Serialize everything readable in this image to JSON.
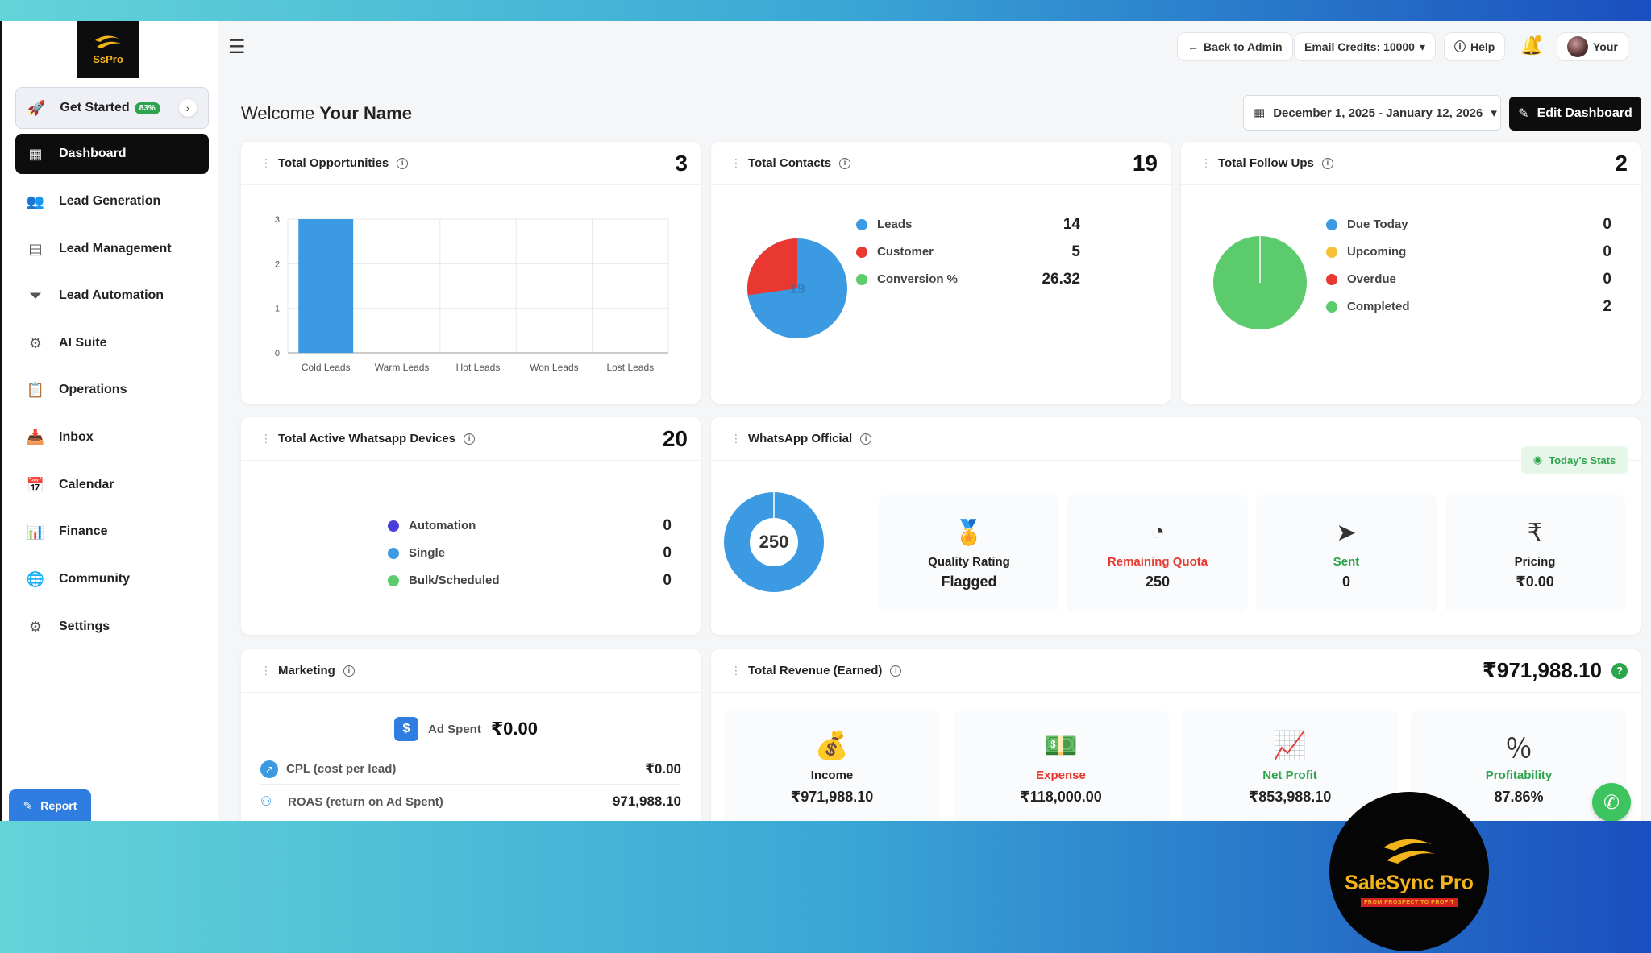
{
  "brand": {
    "logo_text": "SsPro",
    "name": "SaleSync Pro",
    "tagline": "FROM PROSPECT TO PROFIT"
  },
  "sidebar": {
    "get_started": {
      "label": "Get Started",
      "badge": "83%"
    },
    "items": [
      {
        "label": "Dashboard",
        "icon": "dashboard-icon",
        "active": true
      },
      {
        "label": "Lead Generation",
        "icon": "users-icon"
      },
      {
        "label": "Lead Management",
        "icon": "contact-card-icon"
      },
      {
        "label": "Lead Automation",
        "icon": "funnel-icon"
      },
      {
        "label": "AI Suite",
        "icon": "robot-icon"
      },
      {
        "label": "Operations",
        "icon": "clipboard-icon"
      },
      {
        "label": "Inbox",
        "icon": "inbox-icon"
      },
      {
        "label": "Calendar",
        "icon": "calendar-icon"
      },
      {
        "label": "Finance",
        "icon": "finance-icon"
      },
      {
        "label": "Community",
        "icon": "community-icon"
      },
      {
        "label": "Settings",
        "icon": "gear-icon"
      }
    ],
    "report_label": "Report"
  },
  "topbar": {
    "back_to_admin": "Back to Admin",
    "email_credits": "Email Credits: 10000",
    "help": "Help",
    "user": "Your"
  },
  "welcome": {
    "prefix": "Welcome",
    "name": "Your Name"
  },
  "date_range": "December 1, 2025 - January 12, 2026",
  "edit_dashboard": "Edit Dashboard",
  "cards": {
    "opportunities": {
      "title": "Total Opportunities",
      "count": "3"
    },
    "contacts": {
      "title": "Total Contacts",
      "count": "19",
      "pie_center": "19",
      "legend": [
        {
          "label": "Leads",
          "value": "14",
          "color": "#3b9ae1"
        },
        {
          "label": "Customer",
          "value": "5",
          "color": "#e8382f"
        },
        {
          "label": "Conversion %",
          "value": "26.32",
          "color": "#5ccb6b"
        }
      ]
    },
    "followups": {
      "title": "Total Follow Ups",
      "count": "2",
      "legend": [
        {
          "label": "Due Today",
          "value": "0",
          "color": "#3b9ae1"
        },
        {
          "label": "Upcoming",
          "value": "0",
          "color": "#f5c035"
        },
        {
          "label": "Overdue",
          "value": "0",
          "color": "#e8382f"
        },
        {
          "label": "Completed",
          "value": "2",
          "color": "#5ccb6b"
        }
      ]
    },
    "whatsapp_devices": {
      "title": "Total Active Whatsapp Devices",
      "count": "20",
      "legend": [
        {
          "label": "Automation",
          "value": "0",
          "color": "#4a3fd6"
        },
        {
          "label": "Single",
          "value": "0",
          "color": "#3b9ae1"
        },
        {
          "label": "Bulk/Scheduled",
          "value": "0",
          "color": "#5ccb6b"
        }
      ]
    },
    "whatsapp_official": {
      "title": "WhatsApp Official",
      "todays_stats": "Today's Stats",
      "donut_value": "250",
      "stats": [
        {
          "label": "Quality Rating",
          "value": "Flagged",
          "label_color": "#222",
          "icon": "award-icon"
        },
        {
          "label": "Remaining Quota",
          "value": "250",
          "label_color": "#e8382f",
          "icon": "pie-icon"
        },
        {
          "label": "Sent",
          "value": "0",
          "label_color": "#2ca44c",
          "icon": "send-icon"
        },
        {
          "label": "Pricing",
          "value": "₹0.00",
          "label_color": "#222",
          "icon": "rupee-icon"
        }
      ]
    },
    "marketing": {
      "title": "Marketing",
      "ad_spent_label": "Ad Spent",
      "ad_spent_value": "₹0.00",
      "cpl_label": "CPL (cost per lead)",
      "cpl_value": "₹0.00",
      "roas_label": "ROAS (return on Ad Spent)",
      "roas_value": "971,988.10"
    },
    "revenue": {
      "title": "Total Revenue (Earned)",
      "total": "₹971,988.10",
      "stats": [
        {
          "label": "Income",
          "value": "₹971,988.10",
          "label_color": "#222",
          "icon": "money-bag-icon"
        },
        {
          "label": "Expense",
          "value": "₹118,000.00",
          "label_color": "#e8382f",
          "icon": "cash-stack-icon"
        },
        {
          "label": "Net Profit",
          "value": "₹853,988.10",
          "label_color": "#2ca44c",
          "icon": "bar-growth-icon"
        },
        {
          "label": "Profitability",
          "value": "87.86%",
          "label_color": "#2ca44c",
          "icon": "percent-arrow-icon"
        }
      ]
    }
  },
  "chart_data": {
    "type": "bar",
    "categories": [
      "Cold Leads",
      "Warm Leads",
      "Hot Leads",
      "Won Leads",
      "Lost Leads"
    ],
    "values": [
      3,
      0,
      0,
      0,
      0
    ],
    "ylim": [
      0,
      3
    ],
    "yticks": [
      "0",
      "1",
      "2",
      "3"
    ],
    "color": "#3b9ae1",
    "grid": true
  }
}
